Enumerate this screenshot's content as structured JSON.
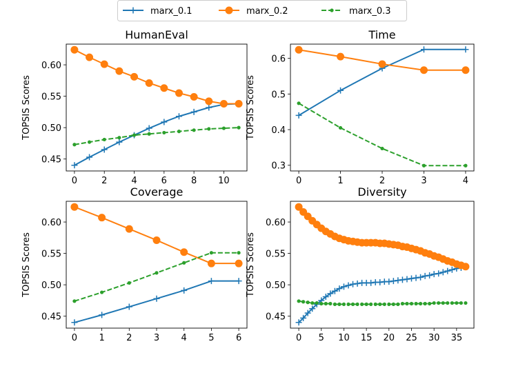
{
  "legend": {
    "entries": [
      {
        "name": "marx_0.1",
        "color": "#1f77b4",
        "marker": "plus",
        "dash": "solid"
      },
      {
        "name": "marx_0.2",
        "color": "#ff7f0e",
        "marker": "circle",
        "dash": "solid"
      },
      {
        "name": "marx_0.3",
        "color": "#2ca02c",
        "marker": "dot",
        "dash": "dashed"
      }
    ]
  },
  "chart_data": [
    {
      "type": "line",
      "title": "HumanEval",
      "xlabel": "",
      "ylabel": "TOPSIS Scores",
      "xlim": [
        -0.55,
        11.55
      ],
      "ylim": [
        0.431,
        0.633
      ],
      "xticks": [
        0,
        2,
        4,
        6,
        8,
        10
      ],
      "xtick_labels": [
        "0",
        "2",
        "4",
        "6",
        "8",
        "10"
      ],
      "yticks": [
        0.45,
        0.5,
        0.55,
        0.6
      ],
      "ytick_labels": [
        "0.45",
        "0.50",
        "0.55",
        "0.60"
      ],
      "x": [
        0,
        1,
        2,
        3,
        4,
        5,
        6,
        7,
        8,
        9,
        10,
        11
      ],
      "series": [
        {
          "name": "marx_0.1",
          "values": [
            0.44,
            0.453,
            0.465,
            0.477,
            0.488,
            0.499,
            0.509,
            0.518,
            0.525,
            0.532,
            0.537,
            0.538
          ]
        },
        {
          "name": "marx_0.2",
          "values": [
            0.624,
            0.612,
            0.601,
            0.59,
            0.581,
            0.571,
            0.563,
            0.555,
            0.549,
            0.542,
            0.538,
            0.538
          ]
        },
        {
          "name": "marx_0.3",
          "values": [
            0.473,
            0.477,
            0.481,
            0.484,
            0.488,
            0.49,
            0.492,
            0.494,
            0.496,
            0.498,
            0.499,
            0.5
          ]
        }
      ]
    },
    {
      "type": "line",
      "title": "Time",
      "xlabel": "",
      "ylabel": "TOPSIS Scores",
      "xlim": [
        -0.2,
        4.2
      ],
      "ylim": [
        0.284,
        0.64
      ],
      "xticks": [
        0,
        1,
        2,
        3,
        4
      ],
      "xtick_labels": [
        "0",
        "1",
        "2",
        "3",
        "4"
      ],
      "yticks": [
        0.3,
        0.4,
        0.5,
        0.6
      ],
      "ytick_labels": [
        "0.3",
        "0.4",
        "0.5",
        "0.6"
      ],
      "x": [
        0,
        1,
        2,
        3,
        4
      ],
      "series": [
        {
          "name": "marx_0.1",
          "values": [
            0.44,
            0.51,
            0.572,
            0.625,
            0.625
          ]
        },
        {
          "name": "marx_0.2",
          "values": [
            0.624,
            0.605,
            0.584,
            0.567,
            0.567
          ]
        },
        {
          "name": "marx_0.3",
          "values": [
            0.474,
            0.405,
            0.347,
            0.299,
            0.299
          ]
        }
      ]
    },
    {
      "type": "line",
      "title": "Coverage",
      "xlabel": "",
      "ylabel": "TOPSIS Scores",
      "xlim": [
        -0.3,
        6.3
      ],
      "ylim": [
        0.431,
        0.633
      ],
      "xticks": [
        0,
        1,
        2,
        3,
        4,
        5,
        6
      ],
      "xtick_labels": [
        "0",
        "1",
        "2",
        "3",
        "4",
        "5",
        "6"
      ],
      "yticks": [
        0.45,
        0.5,
        0.55,
        0.6
      ],
      "ytick_labels": [
        "0.45",
        "0.50",
        "0.55",
        "0.60"
      ],
      "x": [
        0,
        1,
        2,
        3,
        4,
        5,
        6
      ],
      "series": [
        {
          "name": "marx_0.1",
          "values": [
            0.44,
            0.452,
            0.465,
            0.478,
            0.491,
            0.506,
            0.506
          ]
        },
        {
          "name": "marx_0.2",
          "values": [
            0.624,
            0.607,
            0.589,
            0.571,
            0.552,
            0.534,
            0.534
          ]
        },
        {
          "name": "marx_0.3",
          "values": [
            0.474,
            0.488,
            0.503,
            0.519,
            0.535,
            0.551,
            0.551
          ]
        }
      ]
    },
    {
      "type": "line",
      "title": "Diversity",
      "xlabel": "",
      "ylabel": "TOPSIS Scores",
      "xlim": [
        -1.85,
        38.85
      ],
      "ylim": [
        0.431,
        0.633
      ],
      "xticks": [
        0,
        5,
        10,
        15,
        20,
        25,
        30,
        35
      ],
      "xtick_labels": [
        "0",
        "5",
        "10",
        "15",
        "20",
        "25",
        "30",
        "35"
      ],
      "yticks": [
        0.45,
        0.5,
        0.55,
        0.6
      ],
      "ytick_labels": [
        "0.45",
        "0.50",
        "0.55",
        "0.60"
      ],
      "x": [
        0,
        1,
        2,
        3,
        4,
        5,
        6,
        7,
        8,
        9,
        10,
        11,
        12,
        13,
        14,
        15,
        16,
        17,
        18,
        19,
        20,
        21,
        22,
        23,
        24,
        25,
        26,
        27,
        28,
        29,
        30,
        31,
        32,
        33,
        34,
        35,
        36,
        37
      ],
      "series": [
        {
          "name": "marx_0.1",
          "values": [
            0.44,
            0.447,
            0.455,
            0.462,
            0.469,
            0.475,
            0.481,
            0.486,
            0.49,
            0.494,
            0.497,
            0.499,
            0.501,
            0.502,
            0.503,
            0.503,
            0.503,
            0.504,
            0.504,
            0.505,
            0.505,
            0.506,
            0.507,
            0.508,
            0.509,
            0.51,
            0.511,
            0.512,
            0.514,
            0.515,
            0.517,
            0.518,
            0.52,
            0.522,
            0.524,
            0.526,
            0.527,
            0.529
          ]
        },
        {
          "name": "marx_0.2",
          "values": [
            0.624,
            0.616,
            0.609,
            0.602,
            0.596,
            0.59,
            0.585,
            0.581,
            0.577,
            0.574,
            0.572,
            0.57,
            0.569,
            0.568,
            0.567,
            0.567,
            0.567,
            0.567,
            0.566,
            0.566,
            0.565,
            0.564,
            0.563,
            0.561,
            0.56,
            0.558,
            0.556,
            0.554,
            0.551,
            0.549,
            0.546,
            0.544,
            0.541,
            0.538,
            0.536,
            0.533,
            0.531,
            0.529
          ]
        },
        {
          "name": "marx_0.3",
          "values": [
            0.474,
            0.473,
            0.472,
            0.471,
            0.471,
            0.47,
            0.47,
            0.47,
            0.469,
            0.469,
            0.469,
            0.469,
            0.469,
            0.469,
            0.469,
            0.469,
            0.469,
            0.469,
            0.469,
            0.469,
            0.469,
            0.469,
            0.469,
            0.47,
            0.47,
            0.47,
            0.47,
            0.47,
            0.47,
            0.47,
            0.471,
            0.471,
            0.471,
            0.471,
            0.471,
            0.471,
            0.471,
            0.471
          ]
        }
      ]
    }
  ]
}
